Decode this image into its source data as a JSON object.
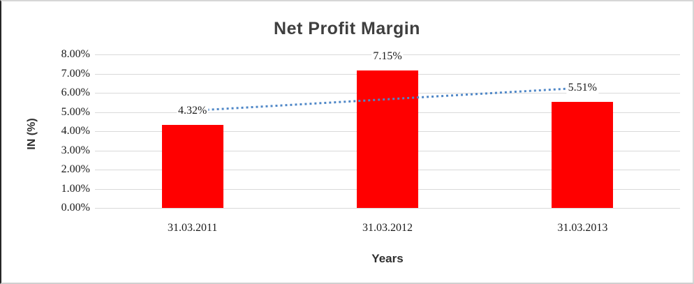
{
  "window": {
    "background": "#ffffff",
    "frame_border_color": "#d6d6d6",
    "frame_left_edge_color": "#262626"
  },
  "chart_data": {
    "type": "bar",
    "title": "Net Profit Margin",
    "xlabel": "Years",
    "ylabel": "IN (%)",
    "categories": [
      "31.03.2011",
      "31.03.2012",
      "31.03.2013"
    ],
    "values": [
      4.32,
      7.15,
      5.51
    ],
    "data_labels": [
      "4.32%",
      "7.15%",
      "5.51%"
    ],
    "y_ticks": [
      "0.00%",
      "1.00%",
      "2.00%",
      "3.00%",
      "4.00%",
      "5.00%",
      "6.00%",
      "7.00%",
      "8.00%"
    ],
    "ylim": [
      0,
      8
    ],
    "grid": true,
    "legend": "none",
    "bar_color": "#ff0000",
    "gridline_color": "#d9d9d9",
    "trendline": {
      "type": "linear",
      "style": "dotted",
      "color": "#4f87c7",
      "start_value": 5.07,
      "end_value": 6.26
    }
  }
}
